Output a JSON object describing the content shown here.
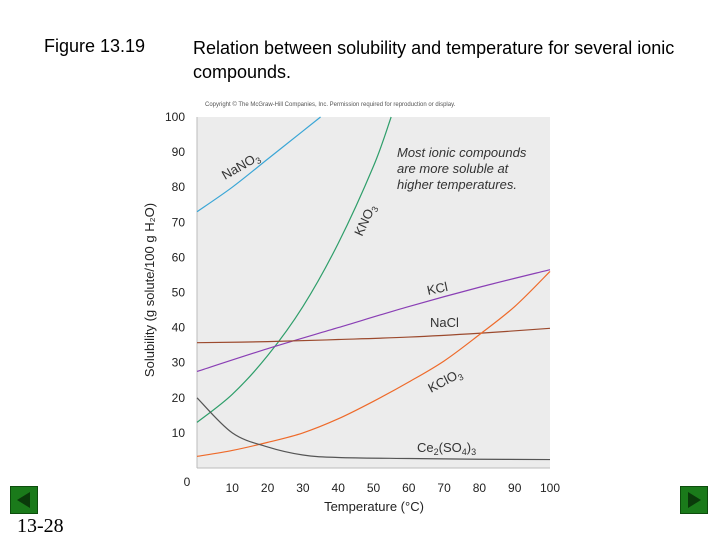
{
  "slide": {
    "figure_label": "Figure 13.19",
    "caption": "Relation between solubility and temperature for several ionic compounds.",
    "slide_number": "13-28",
    "nav": {
      "prev_icon": "triangle-left-icon",
      "next_icon": "triangle-right-icon",
      "color": "#1a7a1a"
    }
  },
  "chart_data": {
    "type": "line",
    "copyright": "Copyright © The McGraw-Hill Companies, Inc. Permission required for reproduction or display.",
    "xlabel": "Temperature (°C)",
    "ylabel": "Solubility (g solute/100 g H₂O)",
    "xlim": [
      0,
      100
    ],
    "ylim": [
      0,
      100
    ],
    "xticks": [
      0,
      10,
      20,
      30,
      40,
      50,
      60,
      70,
      80,
      90,
      100
    ],
    "yticks": [
      10,
      20,
      30,
      40,
      50,
      60,
      70,
      80,
      90,
      100
    ],
    "plot_background": "#ececec",
    "annotation": [
      "Most ionic compounds",
      "are more soluble at",
      "higher temperatures."
    ],
    "series": [
      {
        "name": "NaNO3",
        "label": "NaNO",
        "label_sub": "3",
        "color": "#3aa6d6",
        "x": [
          0,
          10,
          20,
          30,
          35
        ],
        "y": [
          73,
          80,
          88,
          96,
          100
        ]
      },
      {
        "name": "KNO3",
        "label": "KNO",
        "label_sub": "3",
        "color": "#2e9e6a",
        "x": [
          0,
          10,
          20,
          30,
          40,
          50,
          55
        ],
        "y": [
          13,
          21,
          32,
          46,
          64,
          86,
          100
        ]
      },
      {
        "name": "KCl",
        "label": "KCl",
        "label_sub": "",
        "color": "#8a3fb5",
        "x": [
          0,
          20,
          40,
          60,
          80,
          100
        ],
        "y": [
          27.5,
          34,
          40,
          46,
          51.5,
          56.5
        ]
      },
      {
        "name": "NaCl",
        "label": "NaCl",
        "label_sub": "",
        "color": "#9c4a2e",
        "x": [
          0,
          20,
          40,
          60,
          80,
          100
        ],
        "y": [
          35.7,
          36,
          36.6,
          37.3,
          38.4,
          39.8
        ]
      },
      {
        "name": "KClO3",
        "label": "KClO",
        "label_sub": "3",
        "color": "#ee6a2a",
        "x": [
          0,
          10,
          20,
          30,
          40,
          50,
          60,
          70,
          80,
          90,
          100
        ],
        "y": [
          3.3,
          5,
          7.3,
          10,
          14,
          19,
          24.5,
          30.5,
          38,
          46,
          56
        ]
      },
      {
        "name": "Ce2(SO4)3",
        "label": "Ce",
        "label_sub": "2",
        "label_rest": "(SO",
        "label_sub2": "4",
        "label_end": ")",
        "label_sub3": "3",
        "color": "#555555",
        "x": [
          0,
          10,
          20,
          30,
          40,
          60,
          80,
          100
        ],
        "y": [
          20,
          10,
          6,
          3.7,
          3,
          2.7,
          2.5,
          2.4
        ]
      }
    ]
  }
}
